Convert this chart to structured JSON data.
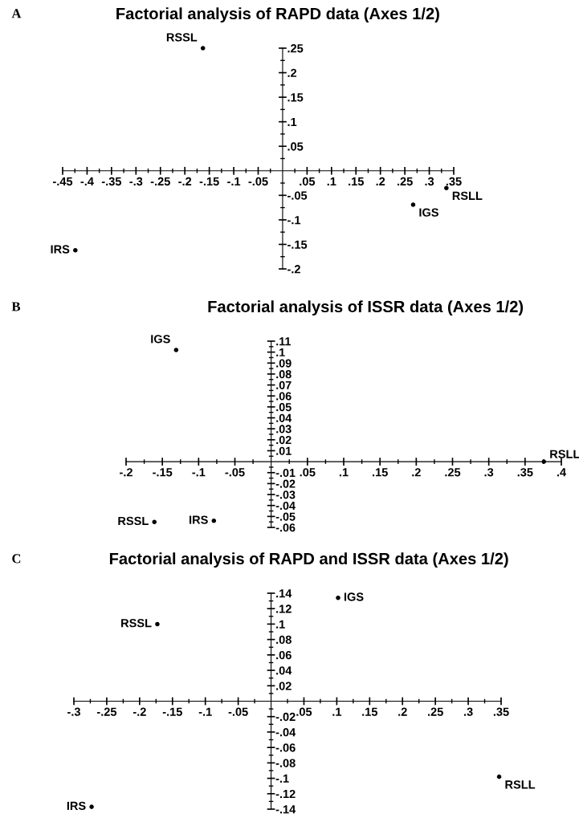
{
  "chart_data": [
    {
      "type": "scatter",
      "title": "Factorial analysis of RAPD data (Axes 1/2)",
      "annotations": [
        "A"
      ],
      "marker": "circle",
      "legend": false,
      "grid": false,
      "xlim": [
        -0.45,
        0.35
      ],
      "ylim": [
        -0.2,
        0.25
      ],
      "xticks": [
        {
          "value": -0.45,
          "label": "-.45"
        },
        {
          "value": -0.4,
          "label": "-.4"
        },
        {
          "value": -0.35,
          "label": "-.35"
        },
        {
          "value": -0.3,
          "label": "-.3"
        },
        {
          "value": -0.25,
          "label": "-.25"
        },
        {
          "value": -0.2,
          "label": "-.2"
        },
        {
          "value": -0.15,
          "label": "-.15"
        },
        {
          "value": -0.1,
          "label": "-.1"
        },
        {
          "value": -0.05,
          "label": "-.05"
        },
        {
          "value": 0.05,
          "label": ".05"
        },
        {
          "value": 0.1,
          "label": ".1"
        },
        {
          "value": 0.15,
          "label": ".15"
        },
        {
          "value": 0.2,
          "label": ".2"
        },
        {
          "value": 0.25,
          "label": ".25"
        },
        {
          "value": 0.3,
          "label": ".3"
        },
        {
          "value": 0.35,
          "label": ".35"
        }
      ],
      "yticks": [
        {
          "value": 0.25,
          "label": ".25"
        },
        {
          "value": 0.2,
          "label": ".2"
        },
        {
          "value": 0.15,
          "label": ".15"
        },
        {
          "value": 0.1,
          "label": ".1"
        },
        {
          "value": 0.05,
          "label": ".05"
        },
        {
          "value": -0.05,
          "label": "-.05"
        },
        {
          "value": -0.1,
          "label": "-.1"
        },
        {
          "value": -0.15,
          "label": "-.15"
        },
        {
          "value": -0.2,
          "label": "-.2"
        }
      ],
      "series": [
        {
          "name": "RSSL",
          "color": "#000000",
          "x": [
            -0.163
          ],
          "values": [
            0.25
          ]
        },
        {
          "name": "IGS",
          "color": "#000000",
          "x": [
            0.267
          ],
          "values": [
            -0.069
          ]
        },
        {
          "name": "RSLL",
          "color": "#000000",
          "x": [
            0.335
          ],
          "values": [
            -0.035
          ]
        },
        {
          "name": "IRS",
          "color": "#000000",
          "x": [
            -0.424
          ],
          "values": [
            -0.162
          ]
        }
      ]
    },
    {
      "type": "scatter",
      "title": "Factorial analysis of ISSR data (Axes 1/2)",
      "annotations": [
        "B"
      ],
      "marker": "circle",
      "legend": false,
      "grid": false,
      "xlim": [
        -0.2,
        0.4
      ],
      "ylim": [
        -0.06,
        0.11
      ],
      "xticks": [
        {
          "value": -0.2,
          "label": "-.2"
        },
        {
          "value": -0.15,
          "label": "-.15"
        },
        {
          "value": -0.1,
          "label": "-.1"
        },
        {
          "value": -0.05,
          "label": "-.05"
        },
        {
          "value": 0.05,
          "label": ".05"
        },
        {
          "value": 0.1,
          "label": ".1"
        },
        {
          "value": 0.15,
          "label": ".15"
        },
        {
          "value": 0.2,
          "label": ".2"
        },
        {
          "value": 0.25,
          "label": ".25"
        },
        {
          "value": 0.3,
          "label": ".3"
        },
        {
          "value": 0.35,
          "label": ".35"
        },
        {
          "value": 0.4,
          "label": ".4"
        }
      ],
      "yticks": [
        {
          "value": 0.11,
          "label": ".11"
        },
        {
          "value": 0.1,
          "label": ".1"
        },
        {
          "value": 0.09,
          "label": ".09"
        },
        {
          "value": 0.08,
          "label": ".08"
        },
        {
          "value": 0.07,
          "label": ".07"
        },
        {
          "value": 0.06,
          "label": ".06"
        },
        {
          "value": 0.05,
          "label": ".05"
        },
        {
          "value": 0.04,
          "label": ".04"
        },
        {
          "value": 0.03,
          "label": ".03"
        },
        {
          "value": 0.02,
          "label": ".02"
        },
        {
          "value": 0.01,
          "label": ".01"
        },
        {
          "value": -0.01,
          "label": "-.01"
        },
        {
          "value": -0.02,
          "label": "-.02"
        },
        {
          "value": -0.03,
          "label": "-.03"
        },
        {
          "value": -0.04,
          "label": "-.04"
        },
        {
          "value": -0.05,
          "label": "-.05"
        },
        {
          "value": -0.06,
          "label": "-.06"
        }
      ],
      "series": [
        {
          "name": "IGS",
          "color": "#000000",
          "x": [
            -0.131
          ],
          "values": [
            0.102
          ]
        },
        {
          "name": "RSLL",
          "color": "#000000",
          "x": [
            0.376
          ],
          "values": [
            0.0
          ]
        },
        {
          "name": "RSSL",
          "color": "#000000",
          "x": [
            -0.161
          ],
          "values": [
            -0.055
          ]
        },
        {
          "name": "IRS",
          "color": "#000000",
          "x": [
            -0.079
          ],
          "values": [
            -0.054
          ]
        }
      ]
    },
    {
      "type": "scatter",
      "title": "Factorial analysis of RAPD and ISSR data (Axes 1/2)",
      "annotations": [
        "C"
      ],
      "marker": "circle",
      "legend": false,
      "grid": false,
      "xlim": [
        -0.3,
        0.35
      ],
      "ylim": [
        -0.14,
        0.14
      ],
      "xticks": [
        {
          "value": -0.3,
          "label": "-.3"
        },
        {
          "value": -0.25,
          "label": "-.25"
        },
        {
          "value": -0.2,
          "label": "-.2"
        },
        {
          "value": -0.15,
          "label": "-.15"
        },
        {
          "value": -0.1,
          "label": "-.1"
        },
        {
          "value": -0.05,
          "label": "-.05"
        },
        {
          "value": 0.05,
          "label": ".05"
        },
        {
          "value": 0.1,
          "label": ".1"
        },
        {
          "value": 0.15,
          "label": ".15"
        },
        {
          "value": 0.2,
          "label": ".2"
        },
        {
          "value": 0.25,
          "label": ".25"
        },
        {
          "value": 0.3,
          "label": ".3"
        },
        {
          "value": 0.35,
          "label": ".35"
        }
      ],
      "yticks": [
        {
          "value": 0.14,
          "label": ".14"
        },
        {
          "value": 0.12,
          "label": ".12"
        },
        {
          "value": 0.1,
          "label": ".1"
        },
        {
          "value": 0.08,
          "label": ".08"
        },
        {
          "value": 0.06,
          "label": ".06"
        },
        {
          "value": 0.04,
          "label": ".04"
        },
        {
          "value": 0.02,
          "label": ".02"
        },
        {
          "value": -0.02,
          "label": "-.02"
        },
        {
          "value": -0.04,
          "label": "-.04"
        },
        {
          "value": -0.06,
          "label": "-.06"
        },
        {
          "value": -0.08,
          "label": "-.08"
        },
        {
          "value": -0.1,
          "label": "-.1"
        },
        {
          "value": -0.12,
          "label": "-.12"
        },
        {
          "value": -0.14,
          "label": "-.14"
        }
      ],
      "series": [
        {
          "name": "IGS",
          "color": "#000000",
          "x": [
            0.102
          ],
          "values": [
            0.134
          ]
        },
        {
          "name": "RSSL",
          "color": "#000000",
          "x": [
            -0.173
          ],
          "values": [
            0.1
          ]
        },
        {
          "name": "RSLL",
          "color": "#000000",
          "x": [
            0.347
          ],
          "values": [
            -0.098
          ]
        },
        {
          "name": "IRS",
          "color": "#000000",
          "x": [
            -0.273
          ],
          "values": [
            -0.137
          ]
        }
      ]
    }
  ]
}
